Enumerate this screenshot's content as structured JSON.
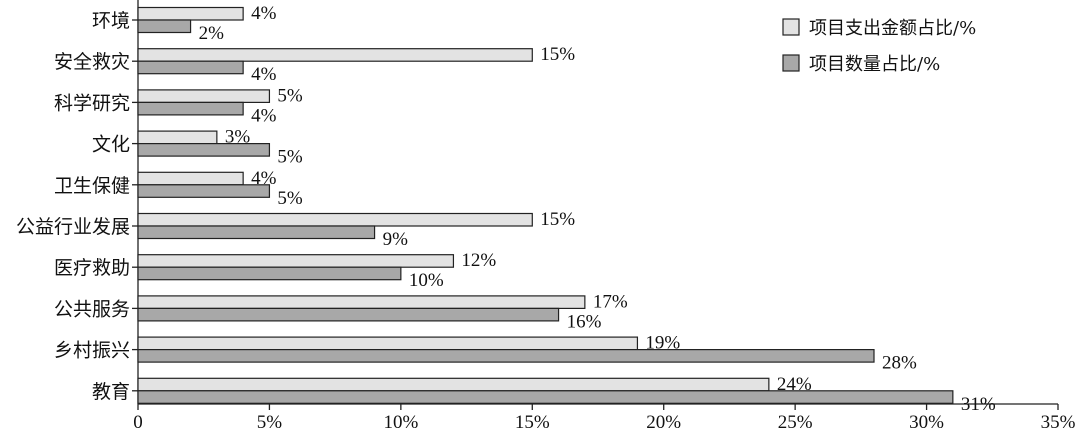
{
  "chart_data": {
    "type": "bar",
    "orientation": "horizontal",
    "categories": [
      "环境",
      "安全救灾",
      "科学研究",
      "文化",
      "卫生保健",
      "公益行业发展",
      "医疗救助",
      "公共服务",
      "乡村振兴",
      "教育"
    ],
    "series": [
      {
        "name": "项目支出金额占比/%",
        "values": [
          4,
          15,
          5,
          3,
          4,
          15,
          12,
          17,
          19,
          24
        ],
        "labels": [
          "4%",
          "15%",
          "5%",
          "3%",
          "4%",
          "15%",
          "12%",
          "17%",
          "19%",
          "24%"
        ],
        "color": "#e3e3e3"
      },
      {
        "name": "项目数量占比/%",
        "values": [
          2,
          4,
          4,
          5,
          5,
          9,
          10,
          16,
          28,
          31
        ],
        "labels": [
          "2%",
          "4%",
          "4%",
          "5%",
          "5%",
          "9%",
          "10%",
          "16%",
          "28%",
          "31%"
        ],
        "color": "#a8a8a8"
      }
    ],
    "x_ticks": [
      0,
      5,
      10,
      15,
      20,
      25,
      30,
      35
    ],
    "x_tick_labels": [
      "0",
      "5%",
      "10%",
      "15%",
      "20%",
      "25%",
      "30%",
      "35%"
    ],
    "xlim": [
      0,
      35
    ],
    "grid": false,
    "legend_position": "top-right"
  }
}
